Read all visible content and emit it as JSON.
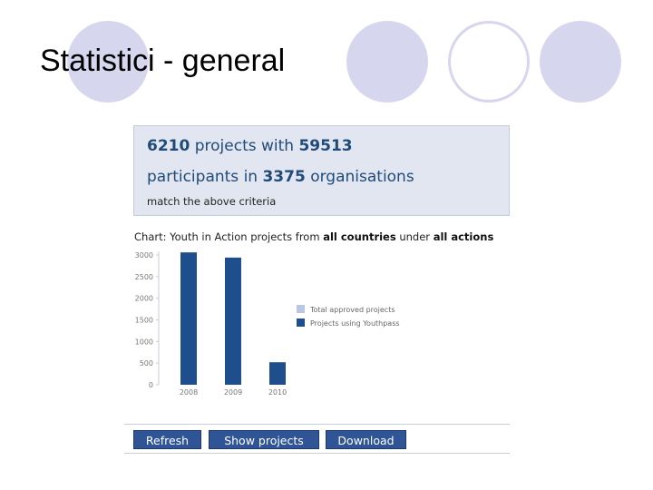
{
  "slide": {
    "title": "Statistici - general"
  },
  "summary": {
    "projects_count": "6210",
    "projects_word": " projects with ",
    "participants_count": "59513",
    "participants_word": "participants in ",
    "organisations_count": "3375",
    "organisations_word": " organisations",
    "criteria_note": "match the above criteria"
  },
  "chart_caption": {
    "prefix": "Chart: Youth in Action projects from ",
    "countries": "all countries",
    "middle": " under ",
    "actions": "all actions"
  },
  "chart_data": {
    "type": "bar",
    "categories": [
      "2008",
      "2009",
      "2010"
    ],
    "series": [
      {
        "name": "Total approved projects",
        "values": [
          0,
          0,
          0
        ],
        "color": "#b9c7e3"
      },
      {
        "name": "Projects using Youthpass",
        "values": [
          3060,
          2940,
          520
        ],
        "color": "#1f4e8c"
      }
    ],
    "y_ticks": [
      "0",
      "500",
      "1000",
      "1500",
      "2000",
      "2500",
      "3000"
    ],
    "ylim": [
      0,
      3000
    ],
    "legend_position": "right",
    "grid": false
  },
  "buttons": {
    "refresh": "Refresh",
    "show_projects": "Show projects",
    "download": "Download"
  },
  "colors": {
    "circle_fill": "#d6d6ee",
    "circle_outline": "#d6d6ee",
    "accent": "#1f4e8c"
  }
}
